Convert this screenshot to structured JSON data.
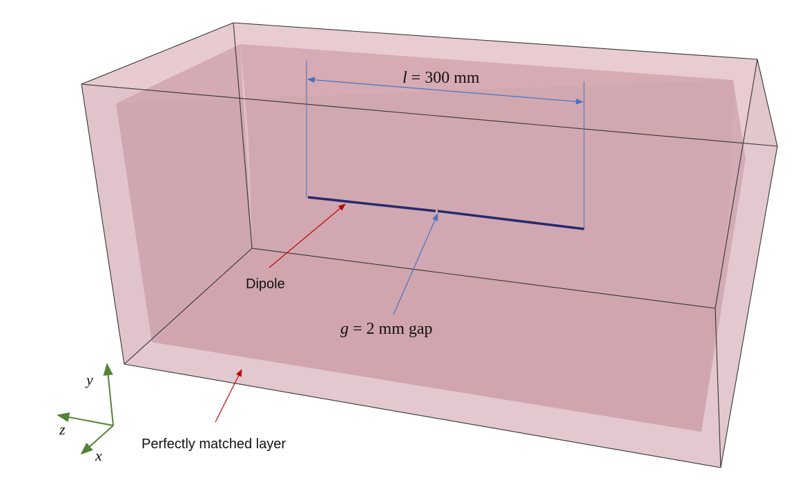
{
  "labels": {
    "length_var": "l",
    "length_rest": " = 300 mm",
    "gap_var": "g",
    "gap_rest": " = 2 mm gap",
    "dipole": "Dipole",
    "pml": "Perfectly matched layer"
  },
  "axes": {
    "y": "y",
    "z": "z",
    "x": "x"
  },
  "colors": {
    "outer_box_fill": "#e6c9cf",
    "inner_region_fill": "#d2a4ae",
    "box_edge": "#333333",
    "dipole": "#262a6e",
    "dimension_line": "#4472c4",
    "red_arrow": "#c00000",
    "axis_arrow": "#548235"
  }
}
